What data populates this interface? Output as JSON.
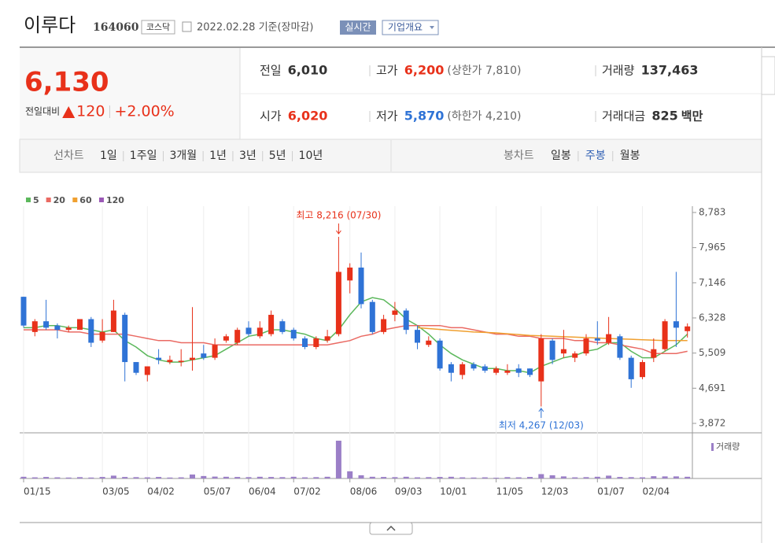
{
  "header": {
    "name": "이루다",
    "code": "164060",
    "market": "코스닥",
    "date": "2022.02.28 기준(장마감)",
    "realtime": "실시간",
    "company_info": "기업개요"
  },
  "quote": {
    "price": "6,130",
    "change_label": "전일대비",
    "change": "120",
    "change_pct": "+2.00%",
    "fields": [
      {
        "label": "전일",
        "value": "6,010"
      },
      {
        "label": "고가",
        "value": "6,200",
        "note": "(상한가 7,810)"
      },
      {
        "label": "거래량",
        "value": "137,463"
      },
      {
        "label": "시가",
        "value": "6,020"
      },
      {
        "label": "저가",
        "value": "5,870",
        "note": "(하한가 4,210)"
      },
      {
        "label": "거래대금",
        "value": "825",
        "unit": "백만"
      }
    ]
  },
  "tabs": {
    "line_label": "선차트",
    "line": [
      "1일",
      "1주일",
      "3개월",
      "1년",
      "3년",
      "5년",
      "10년"
    ],
    "candle_label": "봉차트",
    "candle": [
      "일봉",
      "주봉",
      "월봉"
    ],
    "active_candle": 1
  },
  "chart": {
    "type": "candlestick",
    "categories": [
      "01/15",
      null,
      null,
      null,
      null,
      null,
      null,
      "03/05",
      null,
      null,
      null,
      "04/02",
      null,
      null,
      null,
      null,
      "05/07",
      null,
      null,
      null,
      "06/04",
      null,
      null,
      null,
      "07/02",
      null,
      null,
      null,
      null,
      "08/06",
      null,
      null,
      null,
      "09/03",
      null,
      null,
      null,
      "10/01",
      null,
      null,
      null,
      null,
      "11/05",
      null,
      null,
      null,
      "12/03",
      null,
      null,
      null,
      null,
      "01/07",
      null,
      null,
      null,
      "02/04",
      null,
      null,
      null,
      null
    ],
    "open": [
      6820,
      6000,
      6250,
      6150,
      6050,
      6050,
      6300,
      5800,
      6000,
      6400,
      5300,
      5000,
      5400,
      5300,
      5300,
      5350,
      5500,
      5400,
      5800,
      5750,
      6100,
      5900,
      5950,
      6250,
      6050,
      5850,
      5650,
      5800,
      5950,
      7200,
      7500,
      6700,
      6000,
      6400,
      6500,
      6050,
      5700,
      5800,
      5250,
      5000,
      5250,
      5200,
      5050,
      5050,
      5150,
      5150,
      4850,
      5800,
      5500,
      5400,
      5500,
      5850,
      5750,
      5900,
      5400,
      4950,
      5400,
      5600,
      6250,
      6020
    ],
    "high": [
      6820,
      6300,
      6750,
      6200,
      6150,
      6300,
      6350,
      6300,
      6750,
      6450,
      5300,
      5200,
      5600,
      5450,
      5600,
      6580,
      5700,
      5850,
      5950,
      6100,
      6250,
      6250,
      6500,
      6300,
      6100,
      5900,
      5900,
      6050,
      8216,
      7600,
      7850,
      6750,
      6400,
      6700,
      6550,
      6150,
      5900,
      5850,
      5300,
      5300,
      5300,
      5250,
      5200,
      5250,
      5250,
      5150,
      5950,
      5850,
      6050,
      5550,
      5950,
      6250,
      6350,
      5950,
      5450,
      5350,
      5850,
      6300,
      7400,
      6200
    ],
    "low": [
      6100,
      5900,
      6050,
      5850,
      6000,
      6050,
      5650,
      5750,
      6000,
      4850,
      5000,
      4850,
      5250,
      5250,
      5200,
      5100,
      5350,
      5350,
      5750,
      5700,
      5900,
      5850,
      5900,
      5950,
      5800,
      5600,
      5600,
      5750,
      5900,
      6900,
      6550,
      5950,
      5950,
      6250,
      5950,
      5600,
      5650,
      5100,
      4850,
      4900,
      5100,
      5050,
      5000,
      5000,
      4950,
      4950,
      4267,
      5250,
      5400,
      5300,
      5450,
      5700,
      5700,
      5350,
      4700,
      4900,
      5300,
      5550,
      5650,
      5870
    ],
    "close": [
      6150,
      6250,
      6100,
      6050,
      6100,
      6300,
      5750,
      6000,
      6500,
      5300,
      5050,
      5200,
      5350,
      5350,
      5330,
      5400,
      5400,
      5700,
      5900,
      6050,
      5950,
      6100,
      6400,
      6000,
      5850,
      5650,
      5850,
      5900,
      7400,
      7500,
      6650,
      6000,
      6300,
      6500,
      6050,
      5750,
      5800,
      5150,
      5050,
      5250,
      5150,
      5100,
      5150,
      5100,
      5050,
      5000,
      5850,
      5350,
      5600,
      5500,
      5850,
      5800,
      5950,
      5400,
      4900,
      5300,
      5600,
      6250,
      6100,
      6130
    ],
    "up_color": "#e8311a",
    "down_color": "#2f73d6",
    "ma": [
      {
        "name": "5",
        "color": "#5cb85c",
        "values": [
          6100,
          6100,
          6150,
          6150,
          6100,
          6100,
          6050,
          6000,
          6050,
          5800,
          5650,
          5450,
          5350,
          5300,
          5300,
          5350,
          5400,
          5450,
          5600,
          5750,
          5900,
          5950,
          6050,
          6050,
          6000,
          5950,
          5850,
          5800,
          6050,
          6400,
          6700,
          6800,
          6750,
          6550,
          6300,
          6150,
          5950,
          5700,
          5500,
          5350,
          5250,
          5150,
          5150,
          5100,
          5100,
          5050,
          5200,
          5300,
          5400,
          5450,
          5550,
          5600,
          5750,
          5750,
          5550,
          5400,
          5400,
          5550,
          5700,
          5950
        ]
      },
      {
        "name": "20",
        "color": "#ea6a63",
        "values": [
          6050,
          6050,
          6050,
          6050,
          6000,
          6000,
          5950,
          5950,
          5950,
          5950,
          5900,
          5850,
          5800,
          5800,
          5750,
          5750,
          5750,
          5700,
          5700,
          5700,
          5700,
          5700,
          5700,
          5700,
          5700,
          5700,
          5700,
          5700,
          5750,
          5800,
          5900,
          5950,
          6050,
          6100,
          6150,
          6150,
          6150,
          6150,
          6100,
          6100,
          6050,
          6000,
          5950,
          5950,
          5900,
          5900,
          5850,
          5850,
          5850,
          5800,
          5800,
          5750,
          5750,
          5700,
          5650,
          5600,
          5500,
          5500,
          5500,
          5550
        ]
      },
      {
        "name": "60",
        "color": "#f0a030",
        "values": [
          null,
          null,
          null,
          null,
          null,
          null,
          null,
          null,
          null,
          null,
          null,
          null,
          null,
          null,
          null,
          null,
          null,
          null,
          null,
          null,
          null,
          null,
          null,
          null,
          null,
          null,
          null,
          null,
          null,
          null,
          null,
          null,
          null,
          null,
          null,
          6100,
          6080,
          6060,
          6040,
          6020,
          6000,
          5990,
          5980,
          5960,
          5940,
          5920,
          5910,
          5900,
          5890,
          5880,
          5870,
          5860,
          5850,
          5840,
          5830,
          5820,
          5810,
          5800,
          5800,
          5800
        ]
      },
      {
        "name": "120",
        "color": "#9b59b6"
      }
    ],
    "ylim": [
      3872,
      8783
    ],
    "yticks": [
      {
        "value": 8783,
        "label": "8,783"
      },
      {
        "value": 7965,
        "label": "7,965"
      },
      {
        "value": 7146,
        "label": "7,146"
      },
      {
        "value": 6328,
        "label": "6,328"
      },
      {
        "value": 5509,
        "label": "5,509"
      },
      {
        "value": 4691,
        "label": "4,691"
      },
      {
        "value": 3872,
        "label": "3,872"
      }
    ],
    "grid": "x",
    "annotations": [
      {
        "text": "최고 8,216 (07/30)",
        "color": "#e8311a"
      },
      {
        "text": "최저 4,267 (12/03)",
        "color": "#2f73d6"
      }
    ],
    "volume": {
      "name": "거래량",
      "color": "#9b7fc7",
      "values": [
        90000,
        60000,
        80000,
        60000,
        50000,
        70000,
        50000,
        80000,
        150000,
        80000,
        70000,
        60000,
        80000,
        50000,
        60000,
        210000,
        130000,
        100000,
        90000,
        80000,
        70000,
        90000,
        80000,
        70000,
        90000,
        60000,
        70000,
        90000,
        2000000,
        380000,
        170000,
        90000,
        80000,
        70000,
        90000,
        60000,
        70000,
        80000,
        90000,
        60000,
        50000,
        60000,
        40000,
        70000,
        60000,
        80000,
        230000,
        170000,
        110000,
        60000,
        70000,
        90000,
        150000,
        80000,
        70000,
        60000,
        120000,
        110000,
        110000,
        90000
      ]
    }
  }
}
